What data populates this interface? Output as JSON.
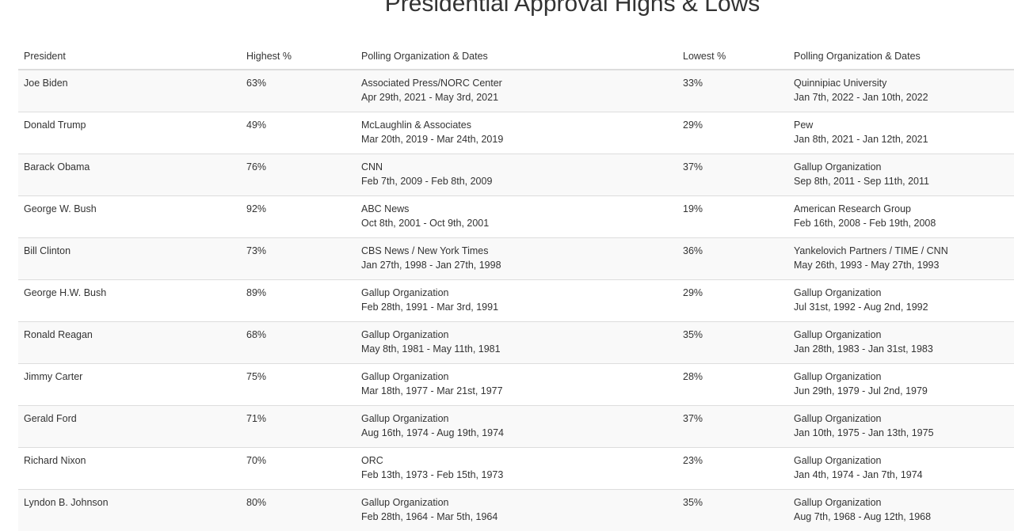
{
  "title": "Presidential Approval Highs & Lows",
  "table": {
    "headers": [
      "President",
      "Highest %",
      "Polling Organization & Dates",
      "Lowest %",
      "Polling Organization & Dates"
    ],
    "rows": [
      {
        "president": "Joe Biden",
        "highest": "63%",
        "high_org": "Associated Press/NORC Center",
        "high_dates": "Apr 29th, 2021 - May 3rd, 2021",
        "lowest": "33%",
        "low_org": "Quinnipiac University",
        "low_dates": "Jan 7th, 2022 - Jan 10th, 2022"
      },
      {
        "president": "Donald Trump",
        "highest": "49%",
        "high_org": "McLaughlin & Associates",
        "high_dates": "Mar 20th, 2019 - Mar 24th, 2019",
        "lowest": "29%",
        "low_org": "Pew",
        "low_dates": "Jan 8th, 2021 - Jan 12th, 2021"
      },
      {
        "president": "Barack Obama",
        "highest": "76%",
        "high_org": "CNN",
        "high_dates": "Feb 7th, 2009 - Feb 8th, 2009",
        "lowest": "37%",
        "low_org": "Gallup Organization",
        "low_dates": "Sep 8th, 2011 - Sep 11th, 2011"
      },
      {
        "president": "George W. Bush",
        "highest": "92%",
        "high_org": "ABC News",
        "high_dates": "Oct 8th, 2001 - Oct 9th, 2001",
        "lowest": "19%",
        "low_org": "American Research Group",
        "low_dates": "Feb 16th, 2008 - Feb 19th, 2008"
      },
      {
        "president": "Bill Clinton",
        "highest": "73%",
        "high_org": "CBS News / New York Times",
        "high_dates": "Jan 27th, 1998 - Jan 27th, 1998",
        "lowest": "36%",
        "low_org": "Yankelovich Partners / TIME / CNN",
        "low_dates": "May 26th, 1993 - May 27th, 1993"
      },
      {
        "president": "George H.W. Bush",
        "highest": "89%",
        "high_org": "Gallup Organization",
        "high_dates": "Feb 28th, 1991 - Mar 3rd, 1991",
        "lowest": "29%",
        "low_org": "Gallup Organization",
        "low_dates": "Jul 31st, 1992 - Aug 2nd, 1992"
      },
      {
        "president": "Ronald Reagan",
        "highest": "68%",
        "high_org": "Gallup Organization",
        "high_dates": "May 8th, 1981 - May 11th, 1981",
        "lowest": "35%",
        "low_org": "Gallup Organization",
        "low_dates": "Jan 28th, 1983 - Jan 31st, 1983"
      },
      {
        "president": "Jimmy Carter",
        "highest": "75%",
        "high_org": "Gallup Organization",
        "high_dates": "Mar 18th, 1977 - Mar 21st, 1977",
        "lowest": "28%",
        "low_org": "Gallup Organization",
        "low_dates": "Jun 29th, 1979 - Jul 2nd, 1979"
      },
      {
        "president": "Gerald Ford",
        "highest": "71%",
        "high_org": "Gallup Organization",
        "high_dates": "Aug 16th, 1974 - Aug 19th, 1974",
        "lowest": "37%",
        "low_org": "Gallup Organization",
        "low_dates": "Jan 10th, 1975 - Jan 13th, 1975"
      },
      {
        "president": "Richard Nixon",
        "highest": "70%",
        "high_org": "ORC",
        "high_dates": "Feb 13th, 1973 - Feb 15th, 1973",
        "lowest": "23%",
        "low_org": "Gallup Organization",
        "low_dates": "Jan 4th, 1974 - Jan 7th, 1974"
      },
      {
        "president": "Lyndon B. Johnson",
        "highest": "80%",
        "high_org": "Gallup Organization",
        "high_dates": "Feb 28th, 1964 - Mar 5th, 1964",
        "lowest": "35%",
        "low_org": "Gallup Organization",
        "low_dates": "Aug 7th, 1968 - Aug 12th, 1968"
      }
    ]
  }
}
